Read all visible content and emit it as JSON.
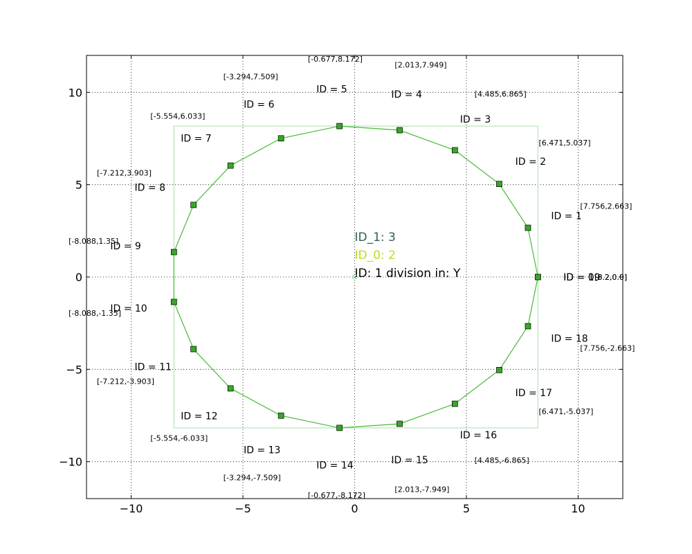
{
  "chart_data": {
    "type": "line",
    "title": "",
    "xlabel": "",
    "ylabel": "",
    "xlim": [
      -12,
      12
    ],
    "ylim": [
      -12,
      12
    ],
    "grid": true,
    "x_ticks": [
      -10,
      -5,
      0,
      5,
      10
    ],
    "y_ticks": [
      -10,
      -5,
      0,
      5,
      10
    ],
    "x_tick_labels": [
      "−10",
      "−5",
      "0",
      "5",
      "10"
    ],
    "y_tick_labels": [
      "−10",
      "−5",
      "0",
      "5",
      "10"
    ],
    "colors": {
      "line": "#44bb33",
      "marker_fill": "#33aa22",
      "bounding_box": "#aaddaa",
      "id1_text": "#2f5f4f",
      "id0_text": "#bbdd22",
      "id_text": "#000000",
      "center_marker": "#66cc66"
    },
    "points": [
      {
        "id": 0,
        "x": 8.2,
        "y": 0.0,
        "label": "ID = 0",
        "coord": "[8.2,0.0]"
      },
      {
        "id": 1,
        "x": 7.756,
        "y": 2.663,
        "label": "ID = 1",
        "coord": "[7.756,2.663]"
      },
      {
        "id": 2,
        "x": 6.471,
        "y": 5.037,
        "label": "ID = 2",
        "coord": "[6.471,5.037]"
      },
      {
        "id": 3,
        "x": 4.485,
        "y": 6.865,
        "label": "ID = 3",
        "coord": "[4.485,6.865]"
      },
      {
        "id": 4,
        "x": 2.013,
        "y": 7.949,
        "label": "ID = 4",
        "coord": "[2.013,7.949]"
      },
      {
        "id": 5,
        "x": -0.677,
        "y": 8.172,
        "label": "ID = 5",
        "coord": "[-0.677,8.172]"
      },
      {
        "id": 6,
        "x": -3.294,
        "y": 7.509,
        "label": "ID = 6",
        "coord": "[-3.294,7.509]"
      },
      {
        "id": 7,
        "x": -5.554,
        "y": 6.033,
        "label": "ID = 7",
        "coord": "[-5.554,6.033]"
      },
      {
        "id": 8,
        "x": -7.212,
        "y": 3.903,
        "label": "ID = 8",
        "coord": "[-7.212,3.903]"
      },
      {
        "id": 9,
        "x": -8.088,
        "y": 1.35,
        "label": "ID = 9",
        "coord": "[-8.088,1.35]"
      },
      {
        "id": 10,
        "x": -8.088,
        "y": -1.35,
        "label": "ID = 10",
        "coord": "[-8.088,-1.35]"
      },
      {
        "id": 11,
        "x": -7.212,
        "y": -3.903,
        "label": "ID = 11",
        "coord": "[-7.212,-3.903]"
      },
      {
        "id": 12,
        "x": -5.554,
        "y": -6.033,
        "label": "ID = 12",
        "coord": "[-5.554,-6.033]"
      },
      {
        "id": 13,
        "x": -3.294,
        "y": -7.509,
        "label": "ID = 13",
        "coord": "[-3.294,-7.509]"
      },
      {
        "id": 14,
        "x": -0.677,
        "y": -8.172,
        "label": "ID = 14",
        "coord": "[-0.677,-8.172]"
      },
      {
        "id": 15,
        "x": 2.013,
        "y": -7.949,
        "label": "ID = 15",
        "coord": "[2.013,-7.949]"
      },
      {
        "id": 16,
        "x": 4.485,
        "y": -6.865,
        "label": "ID = 16",
        "coord": "[4.485,-6.865]"
      },
      {
        "id": 17,
        "x": 6.471,
        "y": -5.037,
        "label": "ID = 17",
        "coord": "[6.471,-5.037]"
      },
      {
        "id": 18,
        "x": 7.756,
        "y": -2.663,
        "label": "ID = 18",
        "coord": "[7.756,-2.663]"
      },
      {
        "id": 19,
        "x": 8.2,
        "y": 0.0,
        "label": "ID = 19",
        "coord": "[8.2,0.0]"
      }
    ],
    "bounding_box": {
      "xmin": -8.088,
      "xmax": 8.2,
      "ymin": -8.172,
      "ymax": 8.172
    },
    "center": {
      "x": 0,
      "y": 0
    },
    "annotations": {
      "id1": "ID_1: 3",
      "id0": "ID_0: 2",
      "id": "ID: 1 division in: Y"
    }
  }
}
